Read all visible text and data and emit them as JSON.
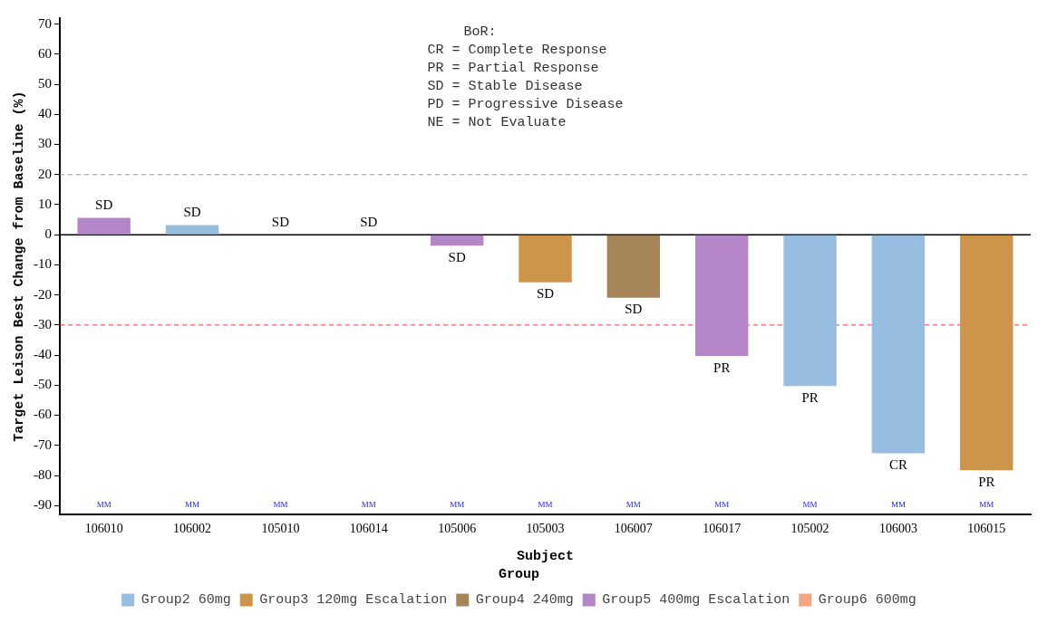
{
  "chart_data": {
    "type": "bar",
    "xlabel": "Subject",
    "ylabel": "Target Leison Best Change from Baseline (%)",
    "legend_title": "Group",
    "categories": [
      "106010",
      "106002",
      "105010",
      "106014",
      "105006",
      "105003",
      "106007",
      "106017",
      "105002",
      "106003",
      "106015"
    ],
    "stacked": true,
    "series": [
      {
        "name": "Group2 60mg",
        "color": "#97bde0",
        "values": [
          null,
          3.2,
          null,
          0,
          null,
          null,
          null,
          null,
          -50.3,
          -72.6,
          null
        ],
        "value_labels": [
          null,
          "SD",
          null,
          "SD",
          null,
          null,
          null,
          null,
          "PR",
          "CR",
          null
        ]
      },
      {
        "name": "Group3 120mg Escalation",
        "color": "#cc9549",
        "values": [
          null,
          null,
          0,
          null,
          null,
          -15.8,
          null,
          null,
          null,
          null,
          -78.3
        ],
        "value_labels": [
          null,
          null,
          "SD",
          null,
          null,
          "SD",
          null,
          null,
          null,
          null,
          "PR"
        ]
      },
      {
        "name": "Group4 240mg",
        "color": "#a6845a",
        "values": [
          null,
          null,
          null,
          null,
          null,
          null,
          -20.9,
          null,
          null,
          null,
          null
        ],
        "value_labels": [
          null,
          null,
          null,
          null,
          null,
          null,
          "SD",
          null,
          null,
          null,
          null
        ]
      },
      {
        "name": "Group5 400mg Escalation",
        "color": "#b486c8",
        "values": [
          5.6,
          null,
          null,
          null,
          -3.6,
          null,
          null,
          -40.3,
          null,
          null,
          null
        ],
        "value_labels": [
          "SD",
          null,
          null,
          null,
          "SD",
          null,
          null,
          "PR",
          null,
          null,
          null
        ]
      },
      {
        "name": "Group6 600mg",
        "color": "#f4a582",
        "values": [
          null,
          null,
          null,
          null,
          null,
          null,
          null,
          null,
          null,
          null,
          null
        ]
      }
    ],
    "ylim": [
      -93,
      72
    ],
    "yticks": [
      -90,
      -80,
      -70,
      -60,
      -50,
      -40,
      -30,
      -20,
      -10,
      0,
      10,
      20,
      30,
      40,
      50,
      60,
      70
    ],
    "grid": false,
    "legend": "bottom",
    "ref_lines": [
      {
        "axis": "y",
        "value": 20,
        "color": "#999999",
        "line_style": "dashed"
      },
      {
        "axis": "y",
        "value": -30,
        "color": "#ff3333",
        "line_style": "dashed"
      },
      {
        "axis": "y",
        "value": 0,
        "color": "#000000",
        "line_style": "solid"
      }
    ],
    "annotations": [
      "BoR:\nCR = Complete Response\nPR = Partial Response\nSD = Stable Disease\nPD = Progressive Disease\nNE = Not Evaluate",
      "MM",
      "MM",
      "MM",
      "MM",
      "MM",
      "MM",
      "MM",
      "MM",
      "MM",
      "MM",
      "MM"
    ]
  }
}
